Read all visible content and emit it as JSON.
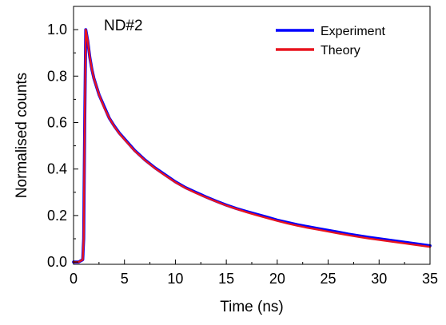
{
  "chart_data": {
    "type": "line",
    "title": "",
    "annotation": "ND#2",
    "xlabel": "Time (ns)",
    "ylabel": "Normalised counts",
    "xlim": [
      0,
      35
    ],
    "ylim": [
      -0.01,
      1.1
    ],
    "x_ticks": [
      0,
      5,
      10,
      15,
      20,
      25,
      30,
      35
    ],
    "x_tick_labels": [
      "0",
      "5",
      "10",
      "15",
      "20",
      "25",
      "30",
      "35"
    ],
    "y_ticks": [
      0.0,
      0.2,
      0.4,
      0.6,
      0.8,
      1.0
    ],
    "y_tick_labels": [
      "0.0",
      "0.2",
      "0.4",
      "0.6",
      "0.8",
      "1.0"
    ],
    "grid": false,
    "legend_position": "top-right",
    "series": [
      {
        "name": "Experiment",
        "color": "#0000ff",
        "x": [
          0,
          0.5,
          0.9,
          1.0,
          1.1,
          1.2,
          1.4,
          1.6,
          1.8,
          2.0,
          2.5,
          3,
          3.5,
          4,
          4.5,
          5,
          6,
          7,
          8,
          9,
          10,
          11,
          12,
          13,
          14,
          15,
          16,
          17,
          18,
          19,
          20,
          21,
          22,
          23,
          24,
          25,
          26,
          27,
          28,
          29,
          30,
          31,
          32,
          33,
          34,
          35
        ],
        "y": [
          0.0,
          0.0,
          0.01,
          0.1,
          0.6,
          1.0,
          0.95,
          0.88,
          0.83,
          0.79,
          0.72,
          0.67,
          0.62,
          0.585,
          0.555,
          0.53,
          0.48,
          0.44,
          0.405,
          0.375,
          0.345,
          0.32,
          0.3,
          0.28,
          0.262,
          0.245,
          0.23,
          0.217,
          0.205,
          0.193,
          0.18,
          0.17,
          0.16,
          0.152,
          0.144,
          0.136,
          0.128,
          0.12,
          0.113,
          0.106,
          0.1,
          0.094,
          0.088,
          0.082,
          0.076,
          0.07
        ]
      },
      {
        "name": "Theory",
        "color": "#e8141e",
        "x": [
          0,
          0.5,
          0.9,
          1.0,
          1.1,
          1.2,
          1.4,
          1.6,
          1.8,
          2.0,
          2.5,
          3,
          3.5,
          4,
          4.5,
          5,
          6,
          7,
          8,
          9,
          10,
          11,
          12,
          13,
          14,
          15,
          16,
          17,
          18,
          19,
          20,
          21,
          22,
          23,
          24,
          25,
          26,
          27,
          28,
          29,
          30,
          31,
          32,
          33,
          34,
          35
        ],
        "y": [
          0.0,
          0.0,
          0.01,
          0.1,
          0.6,
          1.0,
          0.95,
          0.88,
          0.83,
          0.79,
          0.72,
          0.665,
          0.62,
          0.583,
          0.553,
          0.527,
          0.478,
          0.438,
          0.403,
          0.372,
          0.343,
          0.318,
          0.297,
          0.278,
          0.26,
          0.243,
          0.228,
          0.214,
          0.201,
          0.189,
          0.177,
          0.166,
          0.156,
          0.147,
          0.139,
          0.131,
          0.123,
          0.115,
          0.108,
          0.101,
          0.095,
          0.089,
          0.083,
          0.077,
          0.071,
          0.065
        ]
      }
    ]
  }
}
